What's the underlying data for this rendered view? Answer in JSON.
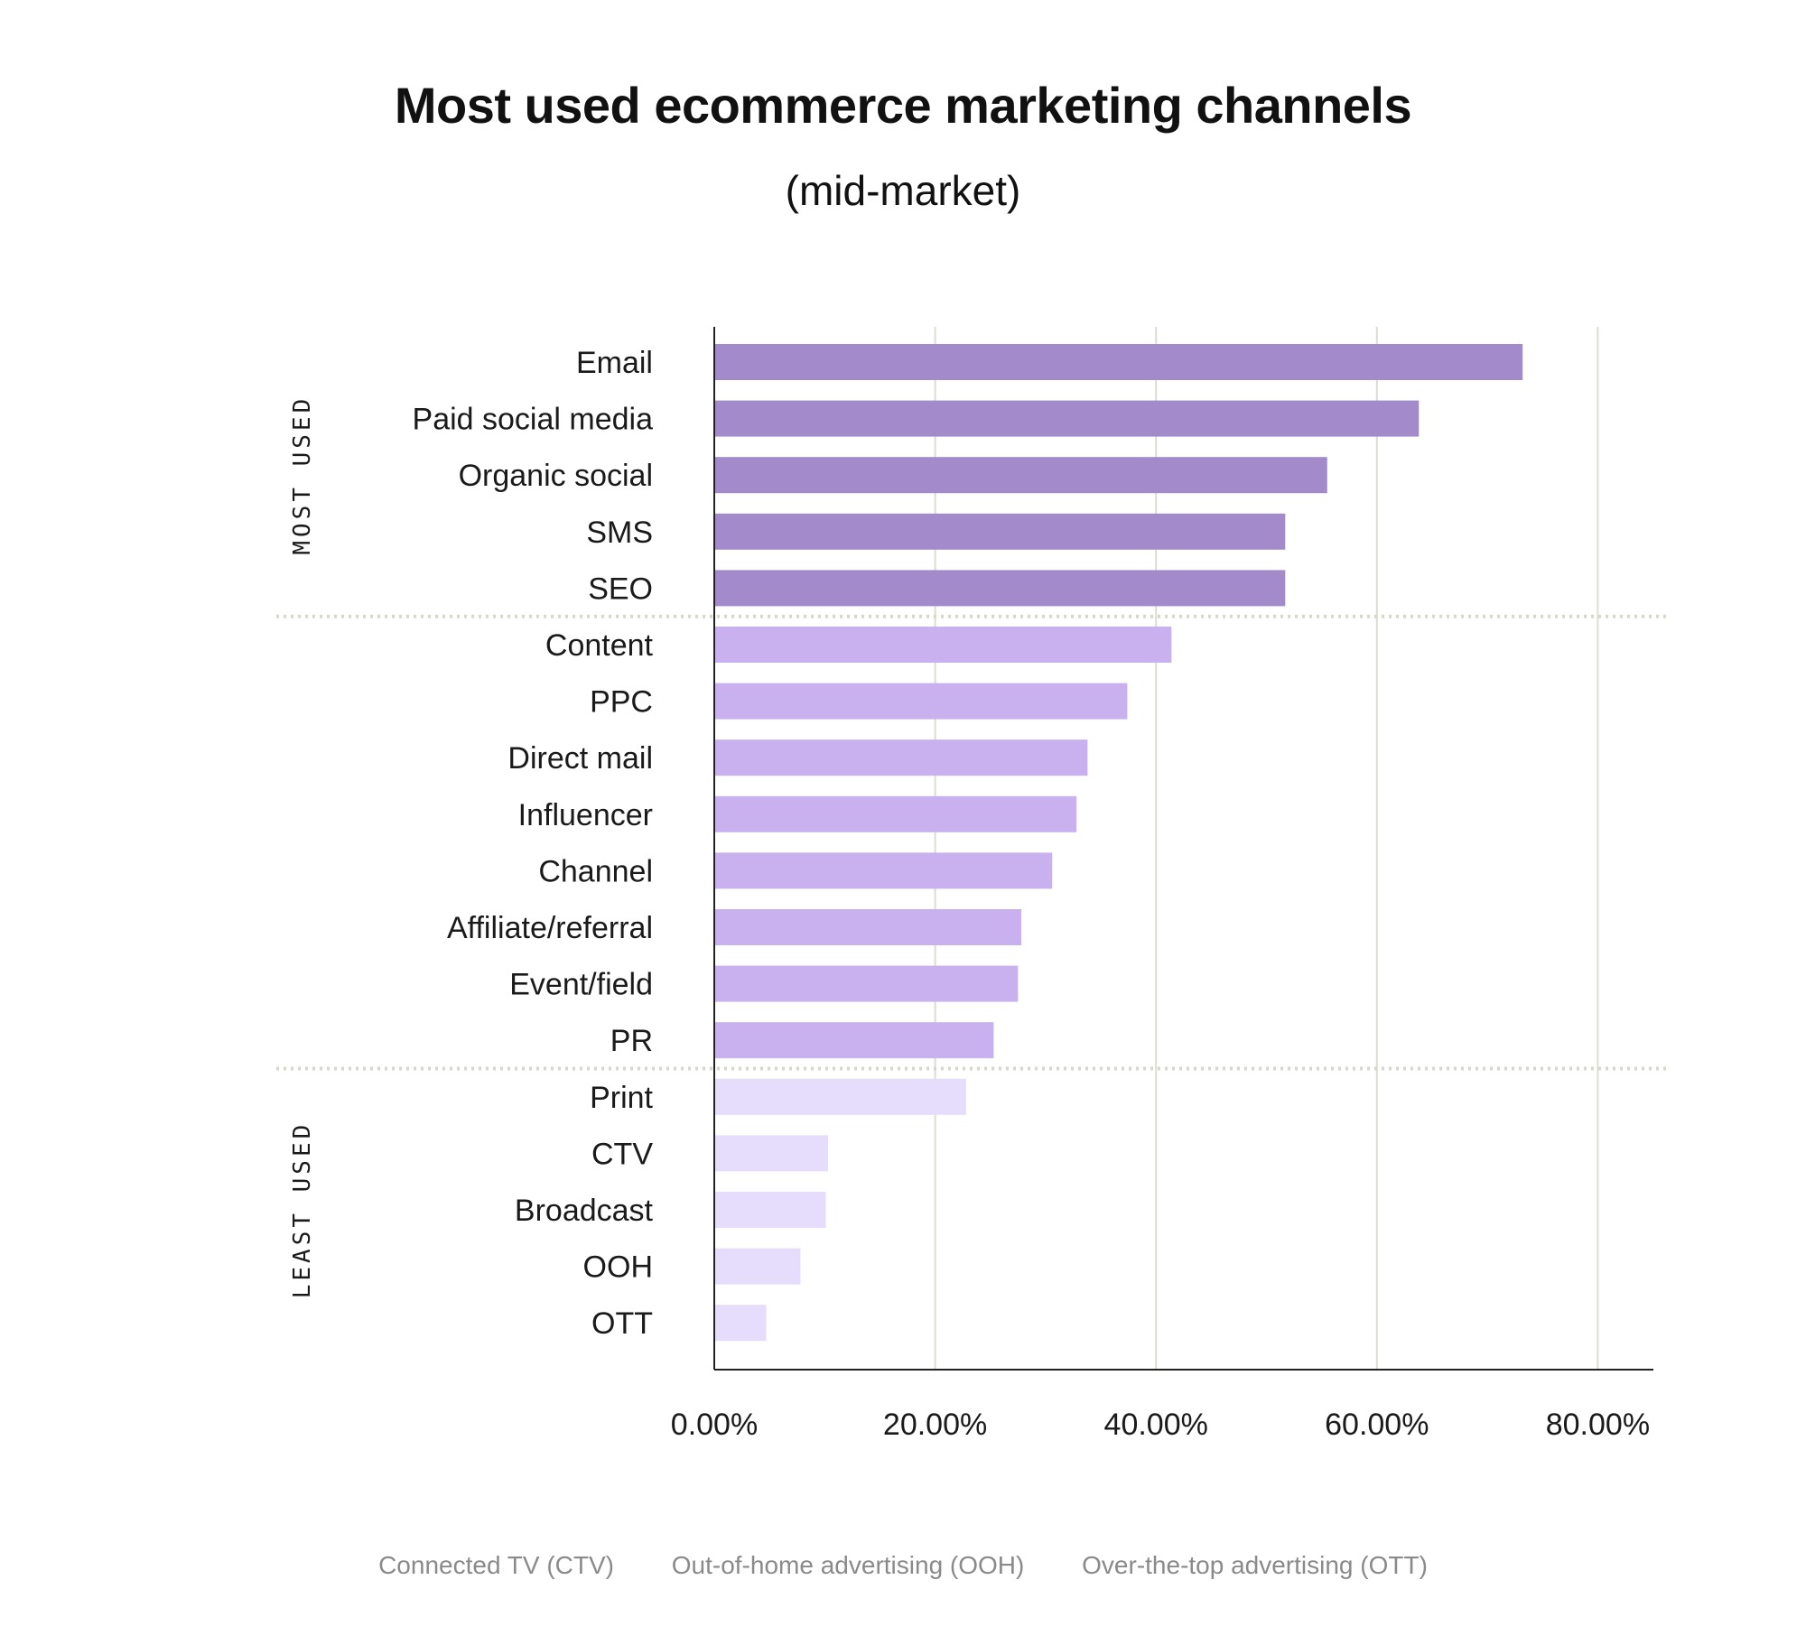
{
  "chart_data": {
    "type": "bar",
    "orientation": "horizontal",
    "title": "Most used ecommerce marketing channels",
    "subtitle": "(mid-market)",
    "categories": [
      "Email",
      "Paid social media",
      "Organic social",
      "SMS",
      "SEO",
      "Content",
      "PPC",
      "Direct mail",
      "Influencer",
      "Channel",
      "Affiliate/referral",
      "Event/field",
      "PR",
      "Print",
      "CTV",
      "Broadcast",
      "OOH",
      "OTT"
    ],
    "values": [
      73.2,
      63.8,
      55.5,
      51.7,
      51.7,
      41.4,
      37.4,
      33.8,
      32.8,
      30.6,
      27.8,
      27.5,
      25.3,
      22.8,
      10.3,
      10.1,
      7.8,
      4.7
    ],
    "groups": [
      {
        "label": "MOST USED",
        "categories": [
          "Email",
          "Paid social media",
          "Organic social",
          "SMS",
          "SEO"
        ],
        "color": "#a38bcb"
      },
      {
        "label": "",
        "categories": [
          "Content",
          "PPC",
          "Direct mail",
          "Influencer",
          "Channel",
          "Affiliate/referral",
          "Event/field",
          "PR"
        ],
        "color": "#c8b1ee"
      },
      {
        "label": "LEAST USED",
        "categories": [
          "Print",
          "CTV",
          "Broadcast",
          "OOH",
          "OTT"
        ],
        "color": "#e6dcfc"
      }
    ],
    "xlim": [
      0,
      85
    ],
    "xticks": [
      0,
      20,
      40,
      60,
      80
    ],
    "xtick_labels": [
      "0.00%",
      "20.00%",
      "40.00%",
      "60.00%",
      "80.00%"
    ],
    "xlabel": "",
    "ylabel": "",
    "grid": "vertical",
    "footnotes": [
      "Connected TV (CTV)",
      "Out-of-home advertising (OOH)",
      "Over-the-top advertising (OTT)"
    ]
  }
}
